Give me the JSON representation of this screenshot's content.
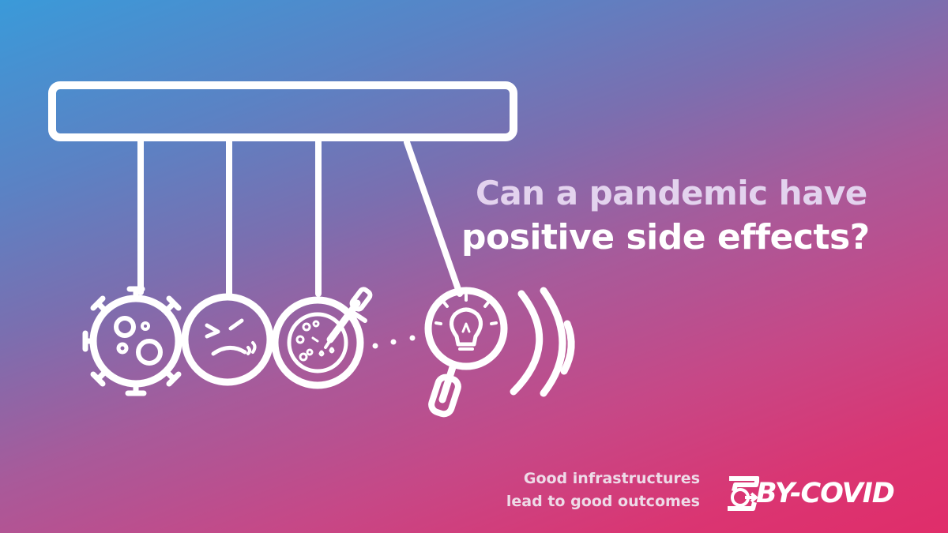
{
  "headline": {
    "line1": "Can a pandemic have",
    "line2": "positive side effects?"
  },
  "tagline": {
    "line1": "Good infrastructures",
    "line2": "lead to good outcomes"
  },
  "logo": {
    "text": "BY-COVID",
    "icon": "speedometer-arrow-icon"
  },
  "illustration": {
    "type": "newtons-cradle",
    "icons": [
      "virus-icon",
      "sick-face-icon",
      "petri-dish-dropper-icon",
      "magnifier-lightbulb-icon"
    ]
  },
  "colors": {
    "gradient_start": "#3a9ad9",
    "gradient_mid": "#a85a9a",
    "gradient_end": "#e02d6a",
    "headline_light": "#e3d3ee",
    "headline_white": "#ffffff",
    "tagline": "#eedbe8"
  }
}
